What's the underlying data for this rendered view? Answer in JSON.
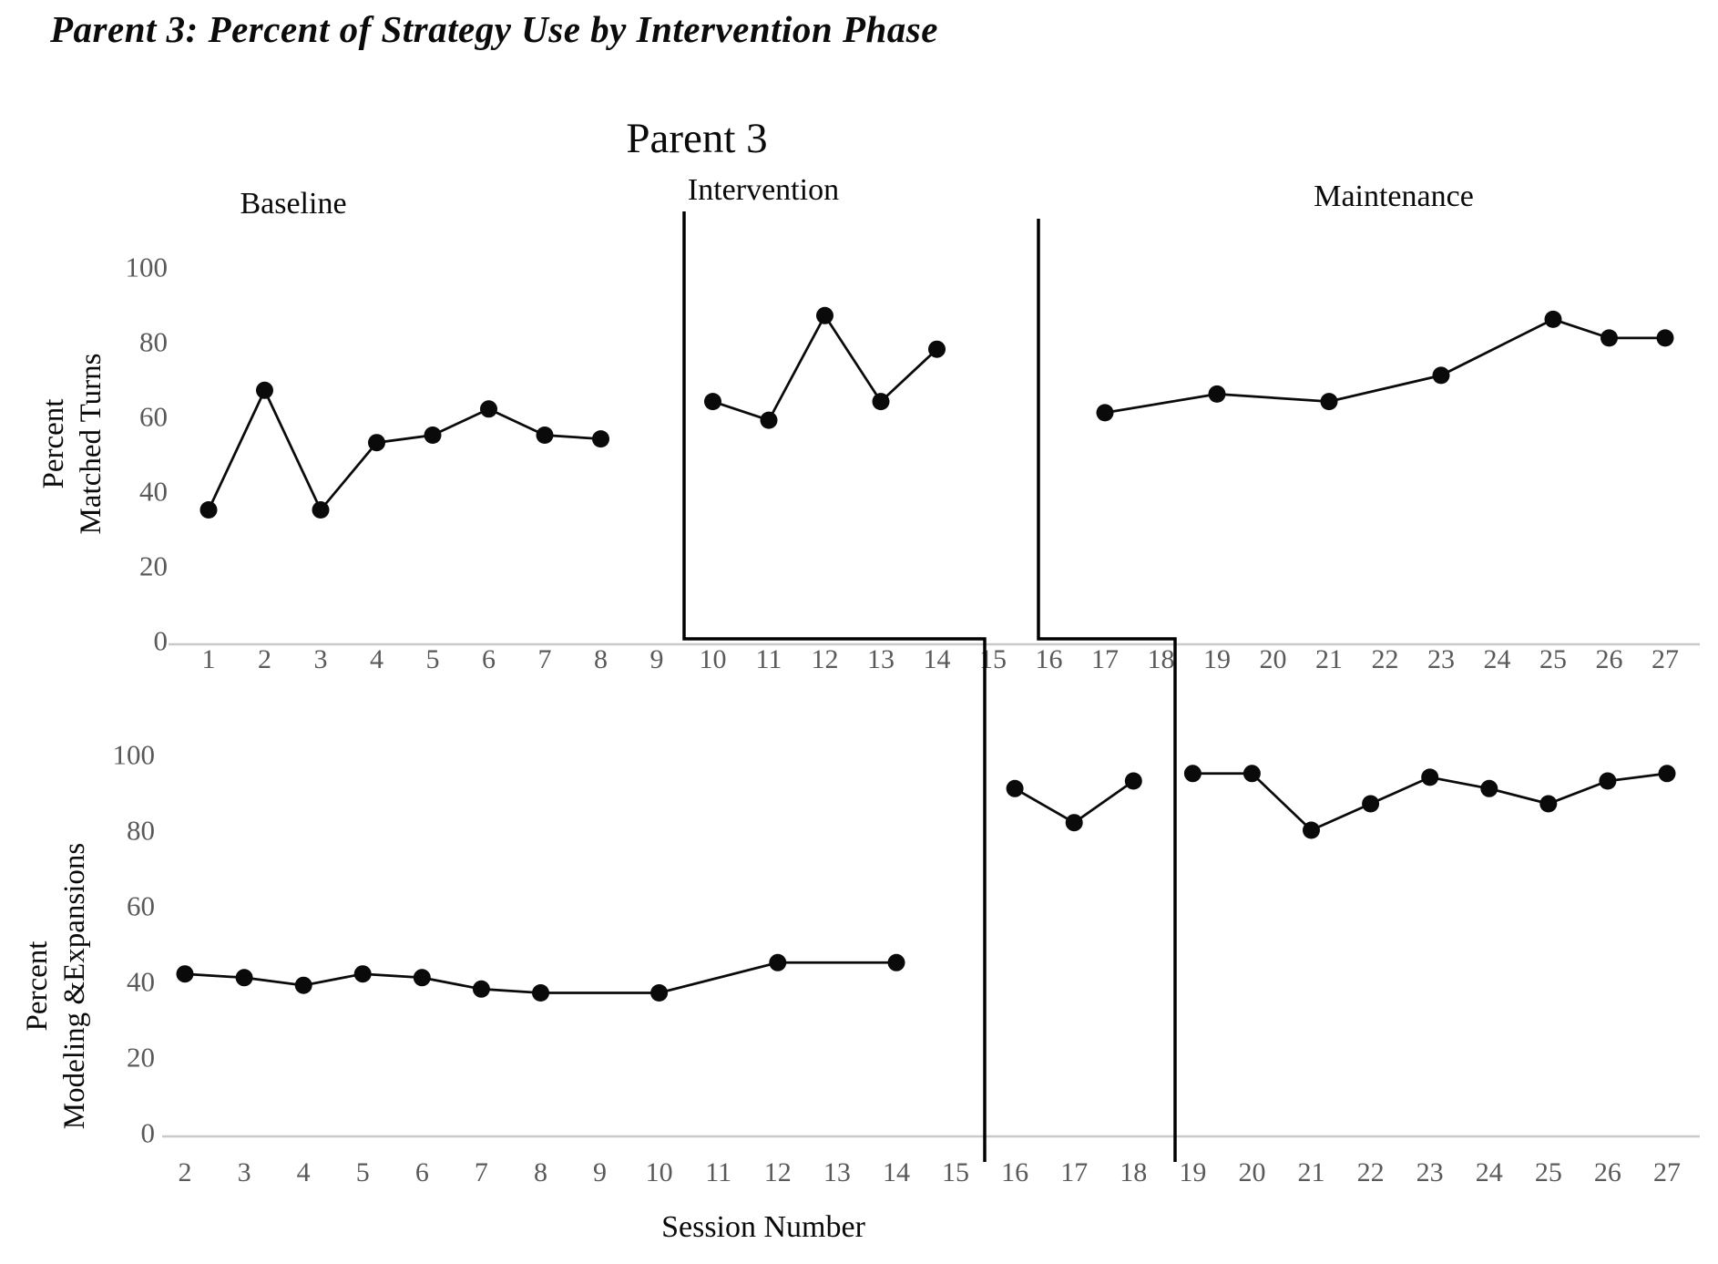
{
  "figure_caption": "Parent 3: Percent of Strategy Use by Intervention Phase",
  "chart_title": "Parent 3",
  "xlabel": "Session Number",
  "phases": [
    {
      "label": "Baseline"
    },
    {
      "label": "Intervention"
    },
    {
      "label": "Maintenance"
    }
  ],
  "colors": {
    "data": "#0a0a0a",
    "marker": "#0a0a0a",
    "tick_label": "#595959",
    "axis_line": "#c9c9c9",
    "phase_line": "#000000"
  },
  "phase_change_lines": [
    {
      "name": "phase-line-baseline-to-intervention",
      "top_panel_between_sessions": "9-10",
      "bottom_panel_between_sessions": "15-16"
    },
    {
      "name": "phase-line-intervention-to-maintenance",
      "top_panel_between_sessions": "15-16",
      "bottom_panel_between_sessions": "18-19"
    }
  ],
  "chart_data": [
    {
      "type": "line",
      "panel": "top",
      "ylabel": "Percent Matched Turns",
      "ylabel_lines": [
        "Percent",
        "Matched Turns"
      ],
      "ylim": [
        0,
        100
      ],
      "yticks": [
        100,
        80,
        60,
        40,
        20,
        0
      ],
      "xticks": [
        1,
        2,
        3,
        4,
        5,
        6,
        7,
        8,
        9,
        10,
        11,
        12,
        13,
        14,
        15,
        16,
        17,
        18,
        19,
        20,
        21,
        22,
        23,
        24,
        25,
        26,
        27
      ],
      "grid": false,
      "legend": "none",
      "series": [
        {
          "name": "Baseline",
          "points": [
            [
              1,
              35
            ],
            [
              2,
              67
            ],
            [
              3,
              35
            ],
            [
              4,
              53
            ],
            [
              5,
              55
            ],
            [
              6,
              62
            ],
            [
              7,
              55
            ],
            [
              8,
              54
            ]
          ]
        },
        {
          "name": "Intervention",
          "points": [
            [
              10,
              64
            ],
            [
              11,
              59
            ],
            [
              12,
              87
            ],
            [
              13,
              64
            ],
            [
              14,
              78
            ]
          ]
        },
        {
          "name": "Maintenance",
          "points": [
            [
              17,
              61
            ],
            [
              19,
              66
            ],
            [
              21,
              64
            ],
            [
              23,
              71
            ],
            [
              25,
              86
            ],
            [
              26,
              81
            ],
            [
              27,
              81
            ]
          ]
        }
      ]
    },
    {
      "type": "line",
      "panel": "bottom",
      "ylabel": "Percent Modeling &Expansions",
      "ylabel_lines": [
        "Percent",
        "Modeling &Expansions"
      ],
      "ylim": [
        0,
        100
      ],
      "yticks": [
        100,
        80,
        60,
        40,
        20,
        0
      ],
      "xticks": [
        2,
        3,
        4,
        5,
        6,
        7,
        8,
        9,
        10,
        11,
        12,
        13,
        14,
        15,
        16,
        17,
        18,
        19,
        20,
        21,
        22,
        23,
        24,
        25,
        26,
        27
      ],
      "grid": false,
      "legend": "none",
      "series": [
        {
          "name": "Baseline",
          "points": [
            [
              2,
              42
            ],
            [
              3,
              41
            ],
            [
              4,
              39
            ],
            [
              5,
              42
            ],
            [
              6,
              41
            ],
            [
              7,
              38
            ],
            [
              8,
              37
            ],
            [
              10,
              37
            ],
            [
              12,
              45
            ],
            [
              14,
              45
            ]
          ]
        },
        {
          "name": "Intervention",
          "points": [
            [
              16,
              91
            ],
            [
              17,
              82
            ],
            [
              18,
              93
            ]
          ]
        },
        {
          "name": "Maintenance",
          "points": [
            [
              19,
              95
            ],
            [
              20,
              95
            ],
            [
              21,
              80
            ],
            [
              22,
              87
            ],
            [
              23,
              94
            ],
            [
              24,
              91
            ],
            [
              25,
              87
            ],
            [
              26,
              93
            ],
            [
              27,
              95
            ]
          ]
        }
      ]
    }
  ]
}
